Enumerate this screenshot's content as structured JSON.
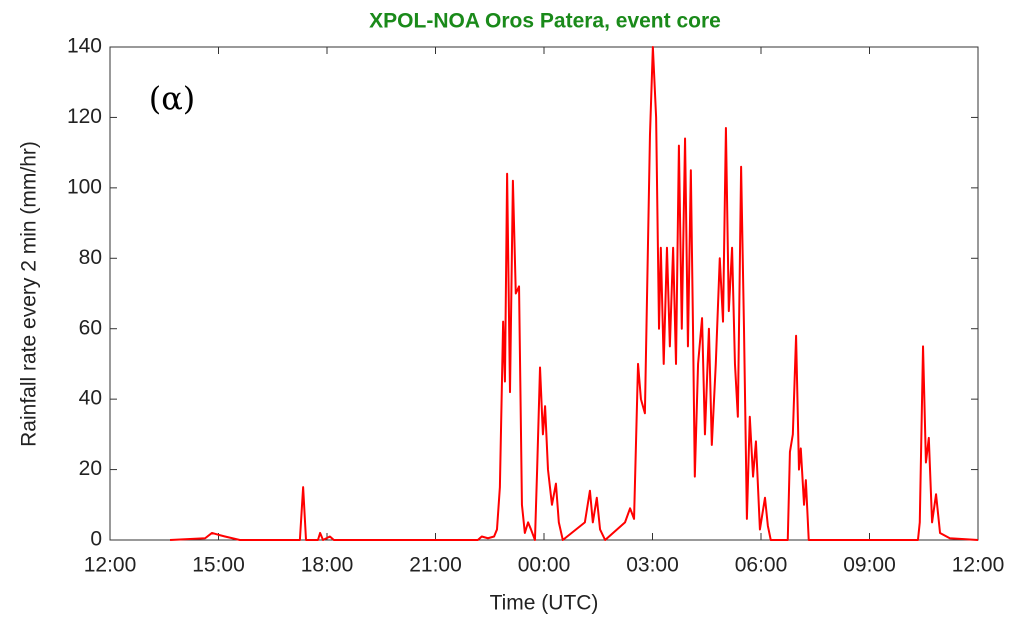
{
  "chart_data": {
    "type": "line",
    "title": "XPOL-NOA Oros Patera, event core",
    "annotation": "(α)",
    "xlabel": "Time (UTC)",
    "ylabel": "Rainfall rate every 2 min (mm/hr)",
    "xlim": [
      12,
      36
    ],
    "xticks": [
      {
        "value": 12,
        "label": "12:00"
      },
      {
        "value": 15,
        "label": "15:00"
      },
      {
        "value": 18,
        "label": "18:00"
      },
      {
        "value": 21,
        "label": "21:00"
      },
      {
        "value": 24,
        "label": "00:00"
      },
      {
        "value": 27,
        "label": "03:00"
      },
      {
        "value": 30,
        "label": "06:00"
      },
      {
        "value": 33,
        "label": "09:00"
      },
      {
        "value": 36,
        "label": "12:00"
      }
    ],
    "ylim": [
      0,
      140
    ],
    "yticks": [
      0,
      20,
      40,
      60,
      80,
      100,
      120,
      140
    ],
    "series": [
      {
        "name": "Rainfall rate",
        "color": "#ff0000",
        "x": [
          13.66,
          14.63,
          14.82,
          14.99,
          15.18,
          15.59,
          17.25,
          17.34,
          17.42,
          17.75,
          17.81,
          17.89,
          18.08,
          18.19,
          22.17,
          22.28,
          22.45,
          22.62,
          22.7,
          22.78,
          22.87,
          22.92,
          22.98,
          23.06,
          23.14,
          23.22,
          23.31,
          23.39,
          23.47,
          23.56,
          23.64,
          23.75,
          23.81,
          23.89,
          23.97,
          24.03,
          24.11,
          24.22,
          24.33,
          24.41,
          24.52,
          25.13,
          25.27,
          25.35,
          25.46,
          25.55,
          25.69,
          26.24,
          26.38,
          26.49,
          26.6,
          26.68,
          26.79,
          26.93,
          27.01,
          27.1,
          27.18,
          27.23,
          27.31,
          27.4,
          27.48,
          27.57,
          27.65,
          27.73,
          27.81,
          27.9,
          27.98,
          28.06,
          28.12,
          28.17,
          28.26,
          28.37,
          28.45,
          28.56,
          28.64,
          28.75,
          28.86,
          28.95,
          29.03,
          29.11,
          29.2,
          29.28,
          29.36,
          29.45,
          29.53,
          29.61,
          29.69,
          29.78,
          29.86,
          29.97,
          30.11,
          30.19,
          30.27,
          30.74,
          30.8,
          30.88,
          30.97,
          31.05,
          31.1,
          31.19,
          31.24,
          31.32,
          34.34,
          34.39,
          34.48,
          34.56,
          34.64,
          34.73,
          34.84,
          34.95,
          35.22,
          36.0
        ],
        "values": [
          0,
          0.5,
          2,
          1.5,
          1,
          0,
          0,
          15,
          0,
          0,
          2,
          0,
          1,
          0,
          0,
          1,
          0.5,
          1,
          3,
          15,
          62,
          45,
          104,
          42,
          102,
          70,
          72,
          10,
          2,
          5,
          3,
          0,
          20,
          49,
          30,
          38,
          20,
          10,
          16,
          5,
          0,
          5,
          14,
          5,
          12,
          3,
          0,
          5,
          9,
          6,
          50,
          40,
          36,
          115,
          140,
          120,
          60,
          83,
          50,
          83,
          55,
          83,
          50,
          112,
          60,
          114,
          55,
          105,
          60,
          18,
          50,
          63,
          30,
          60,
          27,
          50,
          80,
          62,
          117,
          65,
          83,
          50,
          35,
          106,
          60,
          6,
          35,
          18,
          28,
          3,
          12,
          4,
          0,
          0,
          25,
          30,
          58,
          20,
          26,
          10,
          17,
          0,
          0,
          5,
          55,
          22,
          29,
          5,
          13,
          2,
          0.5,
          0
        ]
      }
    ]
  }
}
